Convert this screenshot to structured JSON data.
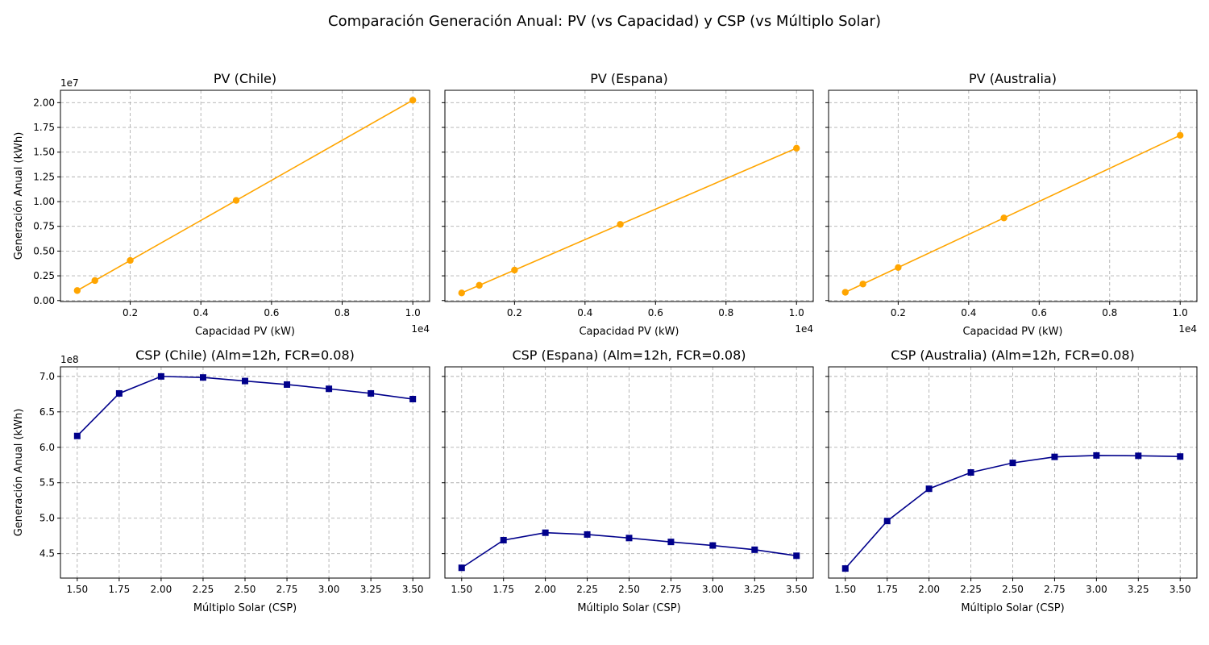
{
  "figure_title": "Comparación Generación Anual: PV (vs Capacidad) y CSP (vs Múltiplo Solar)",
  "colors": {
    "pv": "#FFA500",
    "csp": "#00008B",
    "grid": "#b0b0b0"
  },
  "chart_data": [
    {
      "type": "line",
      "title": "PV (Chile)",
      "xlabel": "Capacidad PV (kW)",
      "ylabel": "Generación Anual (kWh)",
      "x_offset_label": "1e4",
      "y_offset_label": "1e7",
      "marker": "circle",
      "x": [
        500,
        1000,
        2000,
        5000,
        10000
      ],
      "y": [
        1010000,
        2020000,
        4050000,
        10120000,
        20250000
      ],
      "xticks": [
        2000,
        4000,
        6000,
        8000,
        10000
      ],
      "xtick_labels": [
        "0.2",
        "0.4",
        "0.6",
        "0.8",
        "1.0"
      ],
      "yticks": [
        0,
        2500000,
        5000000,
        7500000,
        10000000,
        12500000,
        15000000,
        17500000,
        20000000
      ],
      "ytick_labels": [
        "0.00",
        "0.25",
        "0.50",
        "0.75",
        "1.00",
        "1.25",
        "1.50",
        "1.75",
        "2.00"
      ],
      "xlim": [
        25,
        10475
      ],
      "ylim": [
        -100000,
        21250000
      ],
      "grid": true
    },
    {
      "type": "line",
      "title": "PV (Espana)",
      "xlabel": "Capacidad PV (kW)",
      "ylabel": "",
      "x_offset_label": "1e4",
      "y_offset_label": "",
      "marker": "circle",
      "x": [
        500,
        1000,
        2000,
        5000,
        10000
      ],
      "y": [
        770000,
        1540000,
        3080000,
        7700000,
        15400000
      ],
      "xticks": [
        2000,
        4000,
        6000,
        8000,
        10000
      ],
      "xtick_labels": [
        "0.2",
        "0.4",
        "0.6",
        "0.8",
        "1.0"
      ],
      "yticks": [
        0,
        2500000,
        5000000,
        7500000,
        10000000,
        12500000,
        15000000,
        17500000,
        20000000
      ],
      "ytick_labels": [],
      "xlim": [
        25,
        10475
      ],
      "ylim": [
        -100000,
        21250000
      ],
      "grid": true
    },
    {
      "type": "line",
      "title": "PV (Australia)",
      "xlabel": "Capacidad PV (kW)",
      "ylabel": "",
      "x_offset_label": "1e4",
      "y_offset_label": "",
      "marker": "circle",
      "x": [
        500,
        1000,
        2000,
        5000,
        10000
      ],
      "y": [
        835000,
        1670000,
        3340000,
        8350000,
        16700000
      ],
      "xticks": [
        2000,
        4000,
        6000,
        8000,
        10000
      ],
      "xtick_labels": [
        "0.2",
        "0.4",
        "0.6",
        "0.8",
        "1.0"
      ],
      "yticks": [
        0,
        2500000,
        5000000,
        7500000,
        10000000,
        12500000,
        15000000,
        17500000,
        20000000
      ],
      "ytick_labels": [],
      "xlim": [
        25,
        10475
      ],
      "ylim": [
        -100000,
        21250000
      ],
      "grid": true
    },
    {
      "type": "line",
      "title": "CSP (Chile) (Alm=12h, FCR=0.08)",
      "xlabel": "Múltiplo Solar (CSP)",
      "ylabel": "Generación Anual (kWh)",
      "x_offset_label": "",
      "y_offset_label": "1e8",
      "marker": "square",
      "x": [
        1.5,
        1.75,
        2.0,
        2.25,
        2.5,
        2.75,
        3.0,
        3.25,
        3.5
      ],
      "y": [
        616000000,
        676000000,
        700000000,
        698500000,
        693500000,
        688500000,
        682500000,
        676000000,
        668000000
      ],
      "xticks": [
        1.5,
        1.75,
        2.0,
        2.25,
        2.5,
        2.75,
        3.0,
        3.25,
        3.5
      ],
      "xtick_labels": [
        "1.50",
        "1.75",
        "2.00",
        "2.25",
        "2.50",
        "2.75",
        "3.00",
        "3.25",
        "3.50"
      ],
      "yticks": [
        450000000,
        500000000,
        550000000,
        600000000,
        650000000,
        700000000
      ],
      "ytick_labels": [
        "4.5",
        "5.0",
        "5.5",
        "6.0",
        "6.5",
        "7.0"
      ],
      "xlim": [
        1.4,
        3.6
      ],
      "ylim": [
        415500000,
        713500000
      ],
      "grid": true
    },
    {
      "type": "line",
      "title": "CSP (Espana) (Alm=12h, FCR=0.08)",
      "xlabel": "Múltiplo Solar (CSP)",
      "ylabel": "",
      "x_offset_label": "",
      "y_offset_label": "",
      "marker": "square",
      "x": [
        1.5,
        1.75,
        2.0,
        2.25,
        2.5,
        2.75,
        3.0,
        3.25,
        3.5
      ],
      "y": [
        430000000,
        469000000,
        479500000,
        477000000,
        472000000,
        466500000,
        461500000,
        455500000,
        447000000
      ],
      "xticks": [
        1.5,
        1.75,
        2.0,
        2.25,
        2.5,
        2.75,
        3.0,
        3.25,
        3.5
      ],
      "xtick_labels": [
        "1.50",
        "1.75",
        "2.00",
        "2.25",
        "2.50",
        "2.75",
        "3.00",
        "3.25",
        "3.50"
      ],
      "yticks": [
        450000000,
        500000000,
        550000000,
        600000000,
        650000000,
        700000000
      ],
      "ytick_labels": [],
      "xlim": [
        1.4,
        3.6
      ],
      "ylim": [
        415500000,
        713500000
      ],
      "grid": true
    },
    {
      "type": "line",
      "title": "CSP (Australia) (Alm=12h, FCR=0.08)",
      "xlabel": "Múltiplo Solar (CSP)",
      "ylabel": "",
      "x_offset_label": "",
      "y_offset_label": "",
      "marker": "square",
      "x": [
        1.5,
        1.75,
        2.0,
        2.25,
        2.5,
        2.75,
        3.0,
        3.25,
        3.5
      ],
      "y": [
        429000000,
        496000000,
        541500000,
        564500000,
        578000000,
        586500000,
        588500000,
        588000000,
        587000000
      ],
      "xticks": [
        1.5,
        1.75,
        2.0,
        2.25,
        2.5,
        2.75,
        3.0,
        3.25,
        3.5
      ],
      "xtick_labels": [
        "1.50",
        "1.75",
        "2.00",
        "2.25",
        "2.50",
        "2.75",
        "3.00",
        "3.25",
        "3.50"
      ],
      "yticks": [
        450000000,
        500000000,
        550000000,
        600000000,
        650000000,
        700000000
      ],
      "ytick_labels": [],
      "xlim": [
        1.4,
        3.6
      ],
      "ylim": [
        415500000,
        713500000
      ],
      "grid": true
    }
  ]
}
